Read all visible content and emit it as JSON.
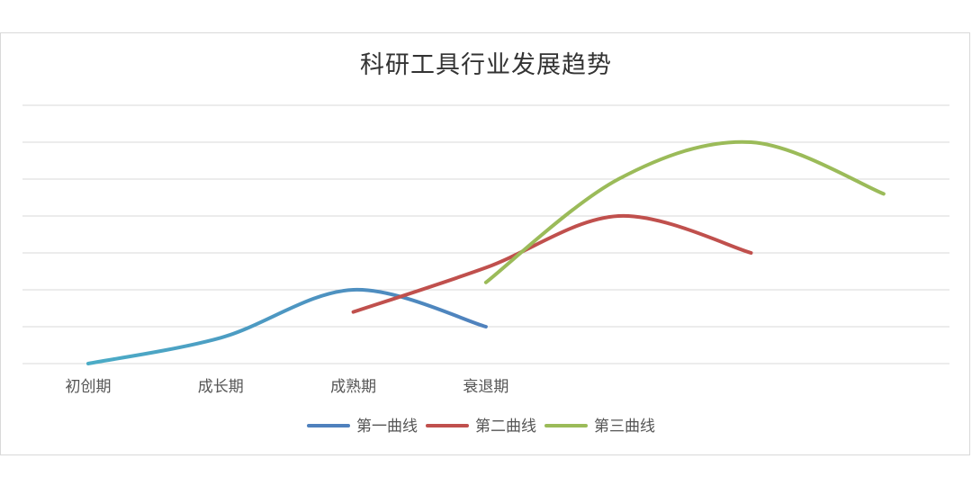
{
  "chart_data": {
    "type": "line",
    "title": "科研工具行业发展趋势",
    "categories": [
      "初创期",
      "成长期",
      "成熟期",
      "衰退期"
    ],
    "x_positions": [
      0,
      1,
      2,
      3,
      4,
      5,
      6,
      7
    ],
    "ylim": [
      0,
      7
    ],
    "grid": true,
    "smooth": true,
    "legend": "bottom",
    "series": [
      {
        "name": "第一曲线",
        "color": "#4bacc6",
        "end_color": "#4f81bd",
        "x": [
          0,
          1,
          2,
          3
        ],
        "values": [
          0,
          0.7,
          2,
          1
        ]
      },
      {
        "name": "第二曲线",
        "color": "#c0504d",
        "x": [
          2,
          3,
          4,
          5
        ],
        "values": [
          1.4,
          2.6,
          4,
          3
        ]
      },
      {
        "name": "第三曲线",
        "color": "#9bbb59",
        "x": [
          3,
          4,
          5,
          6
        ],
        "values": [
          2.2,
          5,
          6,
          4.6
        ]
      }
    ]
  }
}
